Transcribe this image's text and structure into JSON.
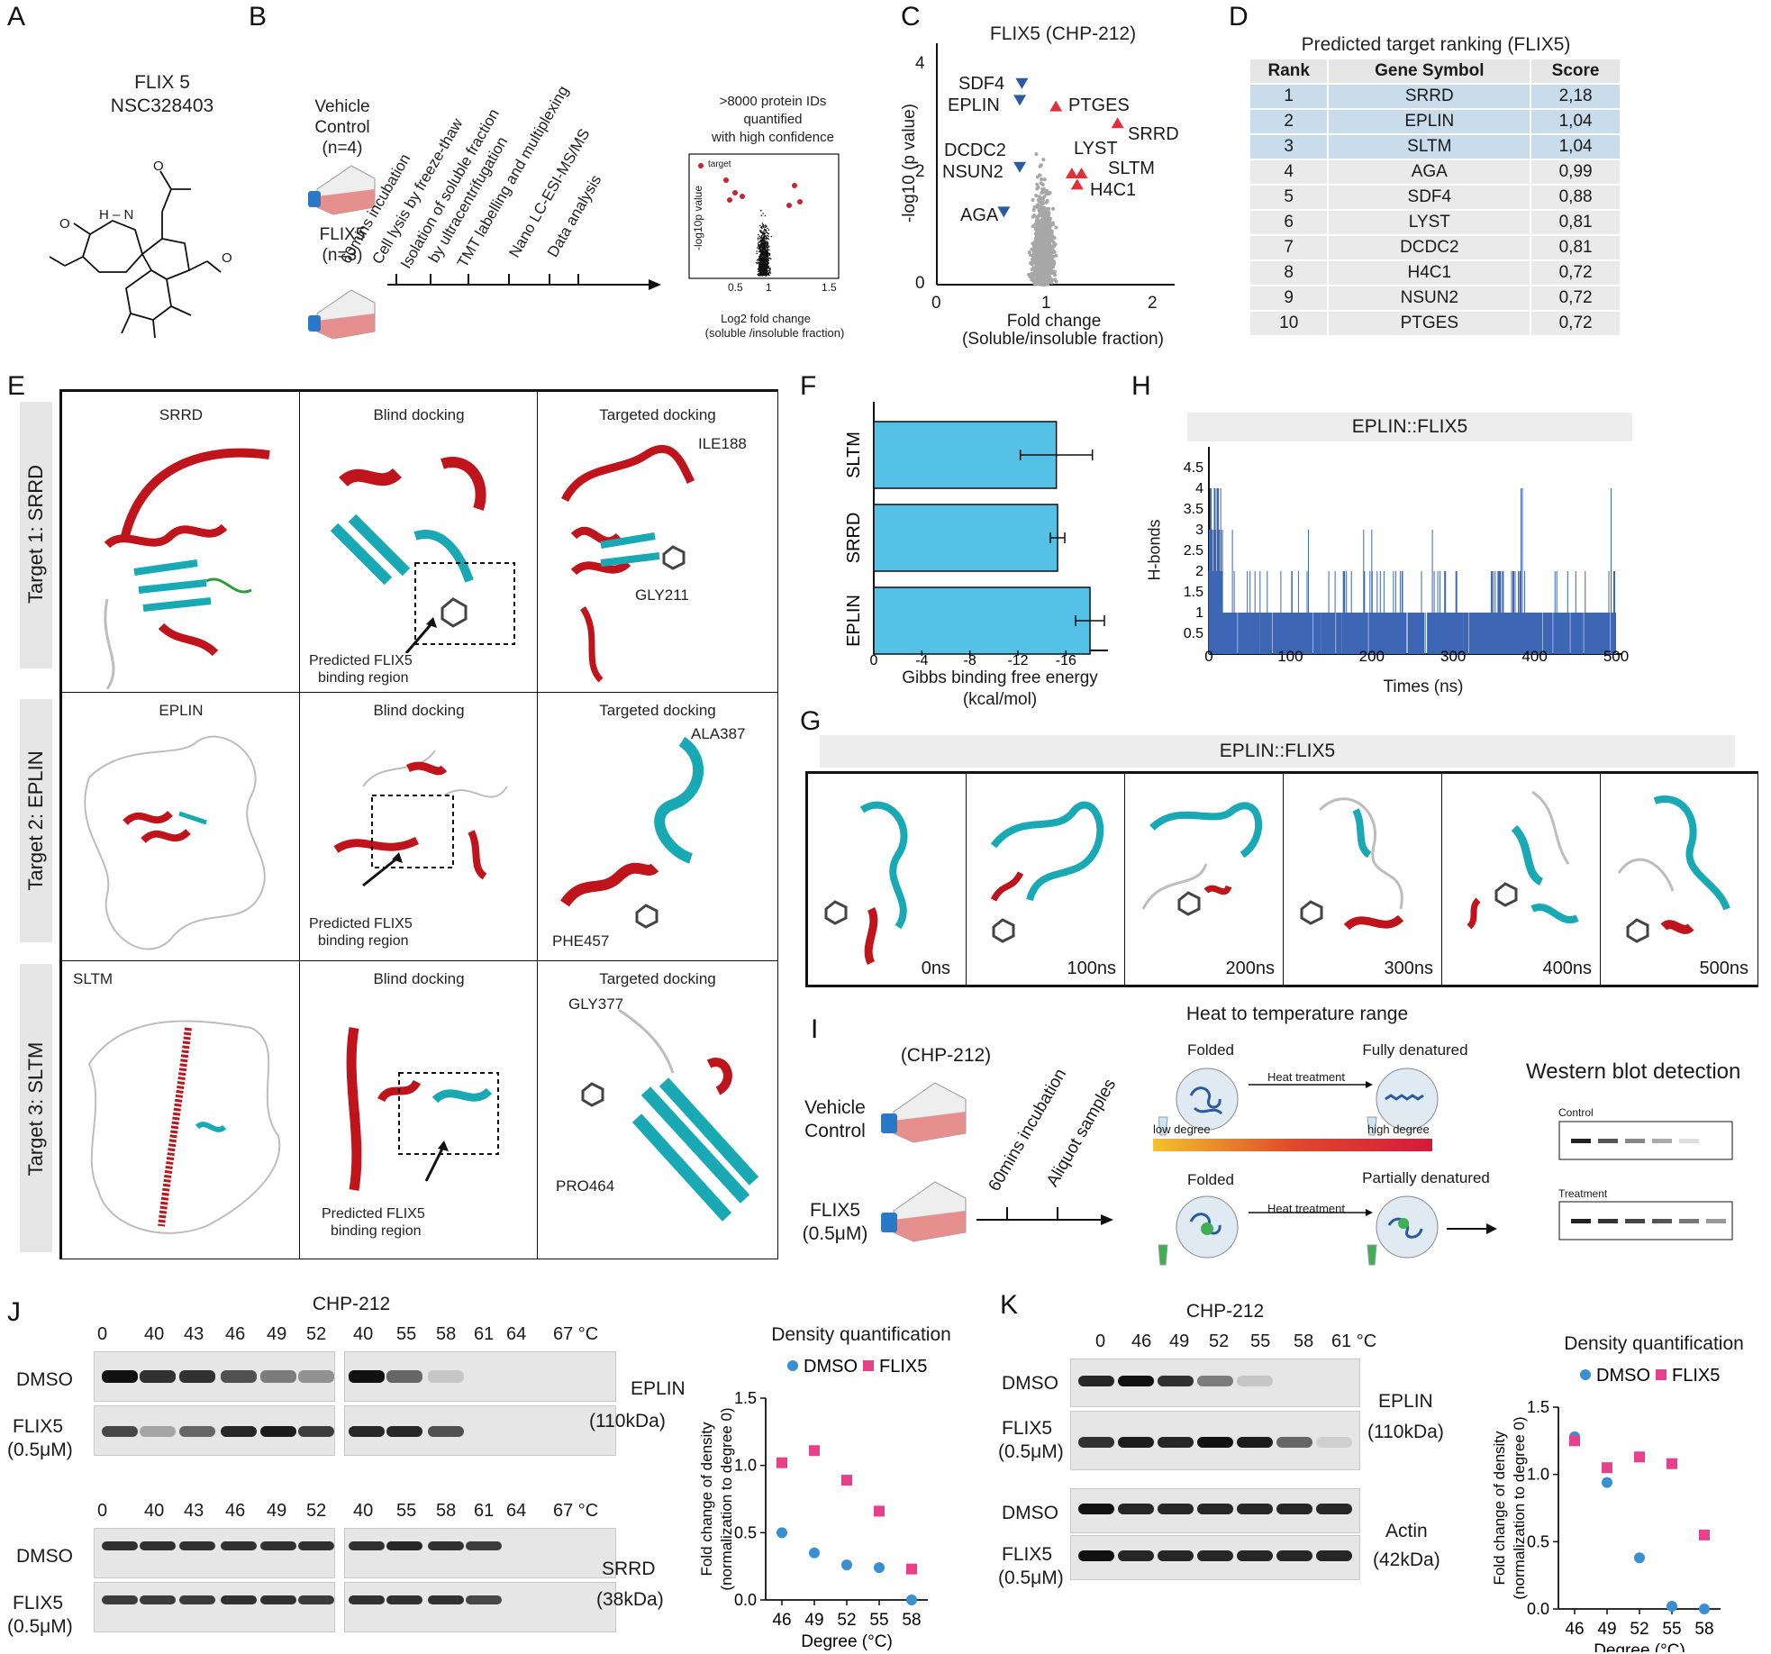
{
  "panel_letters": {
    "a": "A",
    "b": "B",
    "c": "C",
    "d": "D",
    "e": "E",
    "f": "F",
    "g": "G",
    "h": "H",
    "i": "I",
    "j": "J",
    "k": "K"
  },
  "panelA": {
    "title1": "FLIX 5",
    "title2": "NSC328403",
    "atoms": {
      "o_top": "O",
      "nh": "H – N",
      "o_left": "O",
      "o_ald": "O"
    }
  },
  "panelB": {
    "vehicle_line1": "Vehicle",
    "vehicle_line2": "Control",
    "vehicle_n": "(n=4)",
    "flix_label": "FLIX5",
    "flix_n": "(n=3)",
    "steps": [
      "60mins incubation",
      "Cell lysis by freeze-thaw",
      "Isolation of soluble fraction",
      "by ultracentrifugation",
      "TMT labelling and multiplexing",
      "Nano LC-ESI-MS/MS",
      "Data analysis"
    ],
    "summary_line1": ">8000 protein IDs",
    "summary_line2": "quantified",
    "summary_line3": "with high confidence",
    "legend": "target",
    "ylabel": "-log10p value",
    "xlabel1": "Log2 fold change",
    "xlabel2": "(soluble /insoluble fraction)",
    "xticks": [
      "0.5",
      "1",
      "1.5"
    ]
  },
  "panelC": {
    "title": "FLIX5 (CHP-212)",
    "ylabel": "-log10 (p value)",
    "xlabel1": "Fold change",
    "xlabel2": "(Soluble/insoluble fraction)",
    "xticks": [
      "0",
      "1",
      "2"
    ],
    "yticks": [
      "0",
      "2",
      "4"
    ],
    "labels": {
      "sdf4": "SDF4",
      "eplin": "EPLIN",
      "dcdc2": "DCDC2",
      "nsun2": "NSUN2",
      "aga": "AGA",
      "ptges": "PTGES",
      "srrd": "SRRD",
      "lyst": "LYST",
      "sltm": "SLTM",
      "h4c1": "H4C1"
    }
  },
  "panelD": {
    "title": "Predicted target ranking (FLIX5)",
    "headers": [
      "Rank",
      "Gene Symbol",
      "Score"
    ],
    "rows": [
      [
        "1",
        "SRRD",
        "2,18"
      ],
      [
        "2",
        "EPLIN",
        "1,04"
      ],
      [
        "3",
        "SLTM",
        "1,04"
      ],
      [
        "4",
        "AGA",
        "0,99"
      ],
      [
        "5",
        "SDF4",
        "0,88"
      ],
      [
        "6",
        "LYST",
        "0,81"
      ],
      [
        "7",
        "DCDC2",
        "0,81"
      ],
      [
        "8",
        "H4C1",
        "0,72"
      ],
      [
        "9",
        "NSUN2",
        "0,72"
      ],
      [
        "10",
        "PTGES",
        "0,72"
      ]
    ]
  },
  "panelE": {
    "row_labels": [
      "Target 1: SRRD",
      "Target 2: EPLIN",
      "Target 3: SLTM"
    ],
    "col_titles": [
      [
        "SRRD",
        "Blind docking",
        "Targeted docking"
      ],
      [
        "EPLIN",
        "Blind docking",
        "Targeted docking"
      ],
      [
        "SLTM",
        "Blind docking",
        "Targeted docking"
      ]
    ],
    "predicted_line1": "Predicted FLIX5",
    "predicted_line2": "binding region",
    "residues": {
      "r1a": "ILE188",
      "r1b": "GLY211",
      "r2a": "ALA387",
      "r2b": "PHE457",
      "r3a": "GLY377",
      "r3b": "PRO464"
    }
  },
  "panelF": {
    "xlabel1": "Gibbs binding free energy",
    "xlabel2": "(kcal/mol)",
    "xticks": [
      "0",
      "-4",
      "-8",
      "-12",
      "-16"
    ]
  },
  "panelG": {
    "title": "EPLIN::FLIX5",
    "times": [
      "0ns",
      "100ns",
      "200ns",
      "300ns",
      "400ns",
      "500ns"
    ]
  },
  "panelH": {
    "title": "EPLIN::FLIX5",
    "ylabel": "H-bonds",
    "xlabel": "Times (ns)",
    "yticks": [
      "0.5",
      "1",
      "1.5",
      "2",
      "2.5",
      "3",
      "3.5",
      "4",
      "4.5"
    ],
    "xticks": [
      "0",
      "100",
      "200",
      "300",
      "400",
      "500"
    ]
  },
  "panelI": {
    "cell_line": "(CHP-212)",
    "vehicle_line1": "Vehicle",
    "vehicle_line2": "Control",
    "flix_label": "FLIX5",
    "flix_conc": "(0.5μM)",
    "steps": [
      "60mins incubation",
      "Aliquot samples"
    ],
    "heat_title": "Heat to temperature range",
    "folded": "Folded",
    "fully_denatured": "Fully denatured",
    "partially_denatured": "Partially denatured",
    "heat_treatment": "Heat treatment",
    "low": "low degree",
    "high": "high degree",
    "wb_title": "Western blot detection",
    "control": "Control",
    "treatment": "Treatment"
  },
  "panelJ": {
    "cell_line": "CHP-212",
    "temps_left": [
      "0",
      "40",
      "43",
      "46",
      "49",
      "52"
    ],
    "temps_right": [
      "40",
      "55",
      "58",
      "61",
      "64",
      "67 °C"
    ],
    "row_dmso": "DMSO",
    "row_flix1": "FLIX5",
    "row_flix2": "(0.5μM)",
    "protein1": "EPLIN",
    "protein1_kda": "(110kDa)",
    "protein2": "SRRD",
    "protein2_kda": "(38kDa)",
    "density_title": "Density quantification"
  },
  "panelK": {
    "cell_line": "CHP-212",
    "temps": [
      "0",
      "46",
      "49",
      "52",
      "55",
      "58",
      "61 °C"
    ],
    "row_dmso": "DMSO",
    "row_flix1": "FLIX5",
    "row_flix2": "(0.5μM)",
    "protein1": "EPLIN",
    "protein1_kda": "(110kDa)",
    "protein2": "Actin",
    "protein2_kda": "(42kDa)",
    "density_title": "Density quantification"
  },
  "chart_data": [
    {
      "id": "F",
      "type": "bar",
      "orientation": "horizontal",
      "categories": [
        "SLTM",
        "SRRD",
        "EPLIN"
      ],
      "values": [
        -15.2,
        -15.3,
        -18.0
      ],
      "errors": [
        3.0,
        0.6,
        1.2
      ],
      "xlabel": "Gibbs binding free energy (kcal/mol)",
      "xlim": [
        0,
        -20
      ],
      "color": "#55c1e6"
    },
    {
      "id": "J",
      "type": "scatter",
      "title": "Density quantification",
      "ylabel": "Fold change of density (normalization to degree 0)",
      "xlabel": "Degree (°C)",
      "x": [
        46,
        49,
        52,
        55,
        58
      ],
      "ylim": [
        0,
        1.5
      ],
      "yticks": [
        0,
        0.5,
        1.0,
        1.5
      ],
      "series": [
        {
          "name": "DMSO",
          "values": [
            0.5,
            0.35,
            0.26,
            0.24,
            0.0
          ],
          "color": "#3a8fd0",
          "marker": "circle"
        },
        {
          "name": "FLIX5",
          "values": [
            1.02,
            1.11,
            0.89,
            0.66,
            0.23
          ],
          "color": "#e8408a",
          "marker": "square"
        }
      ]
    },
    {
      "id": "K",
      "type": "scatter",
      "title": "Density quantification",
      "ylabel": "Fold change of density (normalization to degree 0)",
      "xlabel": "Degree (°C)",
      "x": [
        46,
        49,
        52,
        55,
        58
      ],
      "ylim": [
        0,
        1.5
      ],
      "yticks": [
        0,
        0.5,
        1.0,
        1.5
      ],
      "series": [
        {
          "name": "DMSO",
          "values": [
            1.28,
            0.94,
            0.38,
            0.02,
            0.0
          ],
          "color": "#3a8fd0",
          "marker": "circle"
        },
        {
          "name": "FLIX5",
          "values": [
            1.25,
            1.05,
            1.13,
            1.08,
            0.55
          ],
          "color": "#e8408a",
          "marker": "square"
        }
      ]
    }
  ],
  "colors": {
    "helix": "#c0141c",
    "sheet": "#18a9b5",
    "turn": "#2e9b3c",
    "coil": "#bdbdbd",
    "bar": "#55c1e6",
    "hbond": "#3c66b4",
    "dmso": "#3a8fd0",
    "flix": "#e8408a",
    "up": "#e0303a",
    "down": "#2a5aa0"
  }
}
